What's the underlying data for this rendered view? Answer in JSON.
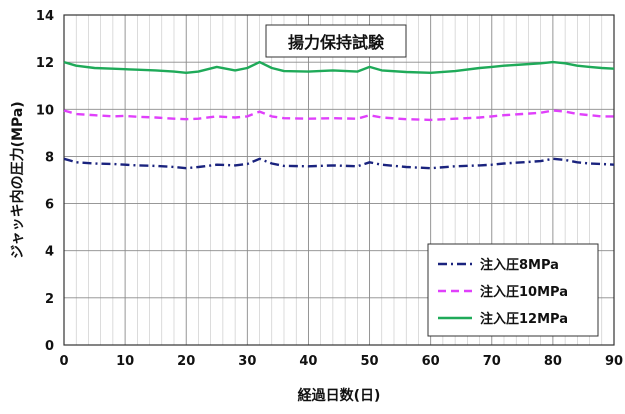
{
  "chart_data": {
    "type": "line",
    "title": "揚力保持試験",
    "xlabel": "経過日数(日)",
    "ylabel": "ジャッキ内の圧力(MPa)",
    "xlim": [
      0,
      90
    ],
    "ylim": [
      0,
      14
    ],
    "x_ticks": [
      "0",
      "10",
      "20",
      "30",
      "40",
      "50",
      "60",
      "70",
      "80",
      "90"
    ],
    "y_ticks": [
      "0",
      "2",
      "4",
      "6",
      "8",
      "10",
      "12",
      "14"
    ],
    "grid": true,
    "legend_position": "bottom-right",
    "x": [
      0,
      2,
      5,
      8,
      10,
      12,
      15,
      18,
      20,
      22,
      25,
      28,
      30,
      32,
      34,
      36,
      40,
      44,
      48,
      50,
      52,
      56,
      60,
      64,
      68,
      70,
      72,
      75,
      78,
      80,
      82,
      84,
      86,
      88,
      90
    ],
    "series": [
      {
        "name": "注入圧8MPa",
        "color": "#1a237e",
        "dash": "dashdot",
        "values": [
          7.9,
          7.75,
          7.7,
          7.68,
          7.65,
          7.62,
          7.6,
          7.55,
          7.5,
          7.55,
          7.65,
          7.62,
          7.68,
          7.9,
          7.7,
          7.6,
          7.58,
          7.62,
          7.58,
          7.75,
          7.65,
          7.55,
          7.5,
          7.58,
          7.62,
          7.65,
          7.7,
          7.75,
          7.8,
          7.9,
          7.85,
          7.75,
          7.7,
          7.68,
          7.65
        ]
      },
      {
        "name": "注入圧10MPa",
        "color": "#e040fb",
        "dash": "dash",
        "values": [
          9.95,
          9.8,
          9.75,
          9.7,
          9.72,
          9.68,
          9.65,
          9.6,
          9.58,
          9.6,
          9.7,
          9.65,
          9.7,
          9.9,
          9.7,
          9.62,
          9.6,
          9.62,
          9.6,
          9.75,
          9.65,
          9.58,
          9.55,
          9.6,
          9.65,
          9.7,
          9.75,
          9.8,
          9.85,
          9.95,
          9.9,
          9.8,
          9.75,
          9.7,
          9.7
        ]
      },
      {
        "name": "注入圧12MPa",
        "color": "#1faa59",
        "dash": "solid",
        "values": [
          12.0,
          11.85,
          11.75,
          11.72,
          11.7,
          11.68,
          11.65,
          11.6,
          11.55,
          11.6,
          11.8,
          11.65,
          11.75,
          12.0,
          11.75,
          11.62,
          11.6,
          11.65,
          11.6,
          11.8,
          11.65,
          11.58,
          11.55,
          11.62,
          11.75,
          11.8,
          11.85,
          11.9,
          11.95,
          12.0,
          11.95,
          11.85,
          11.8,
          11.75,
          11.72
        ]
      }
    ]
  }
}
